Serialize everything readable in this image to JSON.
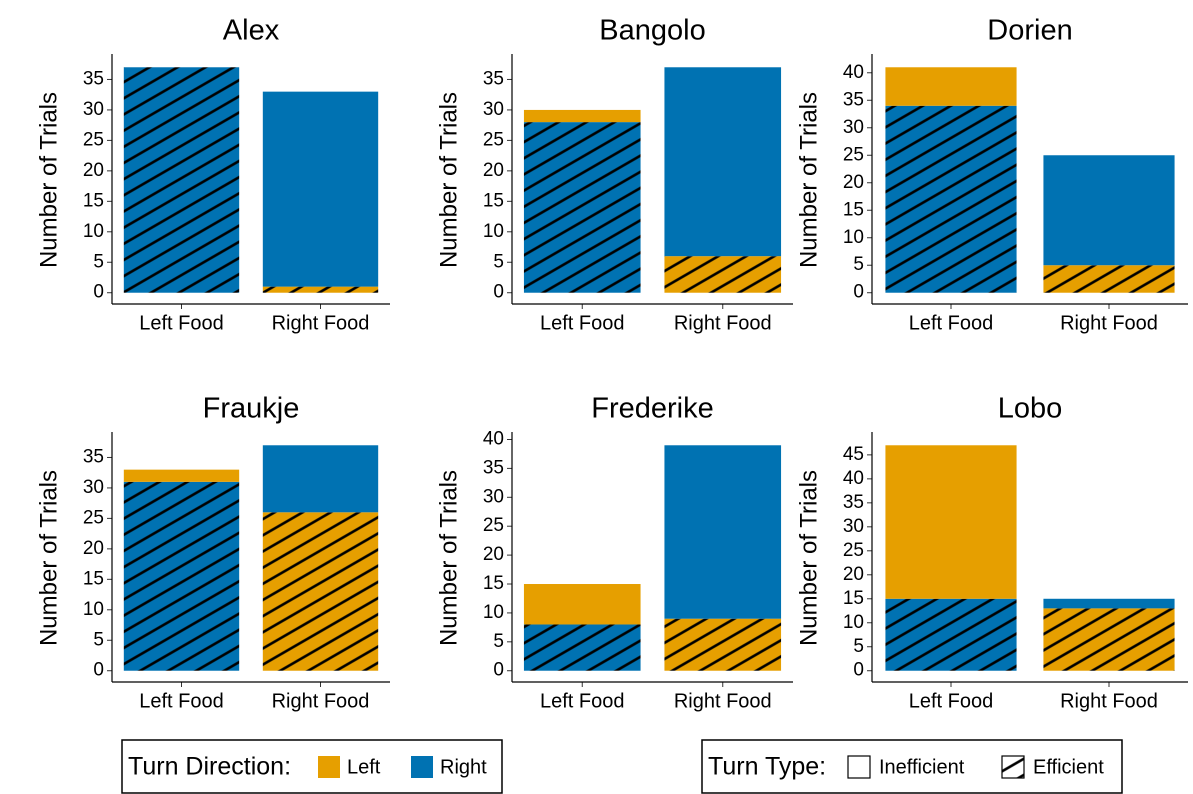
{
  "chart_data": [
    {
      "type": "bar",
      "title": "Alex",
      "y_label": "Number of Trials",
      "categories": [
        "Left Food",
        "Right Food"
      ],
      "series": [
        {
          "name": "Efficient",
          "hatch": true,
          "colors": [
            "#0072B2",
            "#E69F00"
          ],
          "values": [
            37,
            1
          ]
        },
        {
          "name": "Inefficient",
          "hatch": false,
          "colors": [
            "#E69F00",
            "#0072B2"
          ],
          "values": [
            0,
            32
          ]
        }
      ],
      "ylim": [
        -1.85,
        38.85
      ],
      "yticks": [
        0,
        5,
        10,
        15,
        20,
        25,
        30,
        35
      ]
    },
    {
      "type": "bar",
      "title": "Bangolo",
      "y_label": "Number of Trials",
      "categories": [
        "Left Food",
        "Right Food"
      ],
      "series": [
        {
          "name": "Efficient",
          "hatch": true,
          "colors": [
            "#0072B2",
            "#E69F00"
          ],
          "values": [
            28,
            6
          ]
        },
        {
          "name": "Inefficient",
          "hatch": false,
          "colors": [
            "#E69F00",
            "#0072B2"
          ],
          "values": [
            2,
            31
          ]
        }
      ],
      "ylim": [
        -1.85,
        38.85
      ],
      "yticks": [
        0,
        5,
        10,
        15,
        20,
        25,
        30,
        35
      ]
    },
    {
      "type": "bar",
      "title": "Dorien",
      "y_label": "Number of Trials",
      "categories": [
        "Left Food",
        "Right Food"
      ],
      "series": [
        {
          "name": "Efficient",
          "hatch": true,
          "colors": [
            "#0072B2",
            "#E69F00"
          ],
          "values": [
            34,
            5
          ]
        },
        {
          "name": "Inefficient",
          "hatch": false,
          "colors": [
            "#E69F00",
            "#0072B2"
          ],
          "values": [
            7,
            20
          ]
        }
      ],
      "ylim": [
        -2.05,
        43.05
      ],
      "yticks": [
        0,
        5,
        10,
        15,
        20,
        25,
        30,
        35,
        40
      ]
    },
    {
      "type": "bar",
      "title": "Fraukje",
      "y_label": "Number of Trials",
      "categories": [
        "Left Food",
        "Right Food"
      ],
      "series": [
        {
          "name": "Efficient",
          "hatch": true,
          "colors": [
            "#0072B2",
            "#E69F00"
          ],
          "values": [
            31,
            26
          ]
        },
        {
          "name": "Inefficient",
          "hatch": false,
          "colors": [
            "#E69F00",
            "#0072B2"
          ],
          "values": [
            2,
            11
          ]
        }
      ],
      "ylim": [
        -1.85,
        38.85
      ],
      "yticks": [
        0,
        5,
        10,
        15,
        20,
        25,
        30,
        35
      ]
    },
    {
      "type": "bar",
      "title": "Frederike",
      "y_label": "Number of Trials",
      "categories": [
        "Left Food",
        "Right Food"
      ],
      "series": [
        {
          "name": "Efficient",
          "hatch": true,
          "colors": [
            "#0072B2",
            "#E69F00"
          ],
          "values": [
            8,
            9
          ]
        },
        {
          "name": "Inefficient",
          "hatch": false,
          "colors": [
            "#E69F00",
            "#0072B2"
          ],
          "values": [
            7,
            30
          ]
        }
      ],
      "ylim": [
        -1.95,
        40.95
      ],
      "yticks": [
        0,
        5,
        10,
        15,
        20,
        25,
        30,
        35,
        40
      ]
    },
    {
      "type": "bar",
      "title": "Lobo",
      "y_label": "Number of Trials",
      "categories": [
        "Left Food",
        "Right Food"
      ],
      "series": [
        {
          "name": "Efficient",
          "hatch": true,
          "colors": [
            "#0072B2",
            "#E69F00"
          ],
          "values": [
            15,
            13
          ]
        },
        {
          "name": "Inefficient",
          "hatch": false,
          "colors": [
            "#E69F00",
            "#0072B2"
          ],
          "values": [
            32,
            2
          ]
        }
      ],
      "ylim": [
        -2.35,
        49.35
      ],
      "yticks": [
        0,
        5,
        10,
        15,
        20,
        25,
        30,
        35,
        40,
        45
      ]
    }
  ],
  "legend": [
    {
      "title": "Turn Direction:",
      "items": [
        {
          "label": "Left",
          "color": "#E69F00"
        },
        {
          "label": "Right",
          "color": "#0072B2"
        }
      ]
    },
    {
      "title": "Turn Type:",
      "items": [
        {
          "label": "Inefficient",
          "hatch": false
        },
        {
          "label": "Efficient",
          "hatch": true
        }
      ]
    }
  ]
}
